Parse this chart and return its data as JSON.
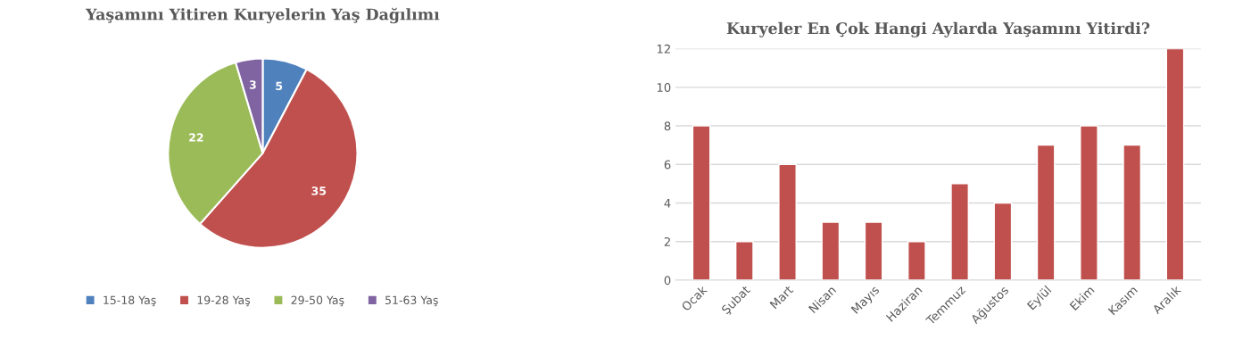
{
  "chart_data": [
    {
      "type": "pie",
      "title": "Yaşamını Yitiren Kuryelerin Yaş Dağılımı",
      "categories": [
        "15-18 Yaş",
        "19-28 Yaş",
        "29-50 Yaş",
        "51-63 Yaş"
      ],
      "values": [
        5,
        35,
        22,
        3
      ],
      "colors": [
        "#4f81bd",
        "#c0504d",
        "#9bbb59",
        "#8064a2"
      ],
      "data_labels": true,
      "legend": "bottom"
    },
    {
      "type": "bar",
      "title": "Kuryeler En Çok Hangi Aylarda Yaşamını Yitirdi?",
      "categories": [
        "Ocak",
        "Şubat",
        "Mart",
        "Nisan",
        "Mayıs",
        "Haziran",
        "Temmuz",
        "Ağustos",
        "Eylül",
        "Ekim",
        "Kasım",
        "Aralık"
      ],
      "values": [
        8,
        2,
        6,
        3,
        3,
        2,
        5,
        4,
        7,
        8,
        7,
        12
      ],
      "color": "#c0504d",
      "ylim": [
        0,
        12
      ],
      "yticks": [
        0,
        2,
        4,
        6,
        8,
        10,
        12
      ],
      "grid": "y"
    }
  ]
}
